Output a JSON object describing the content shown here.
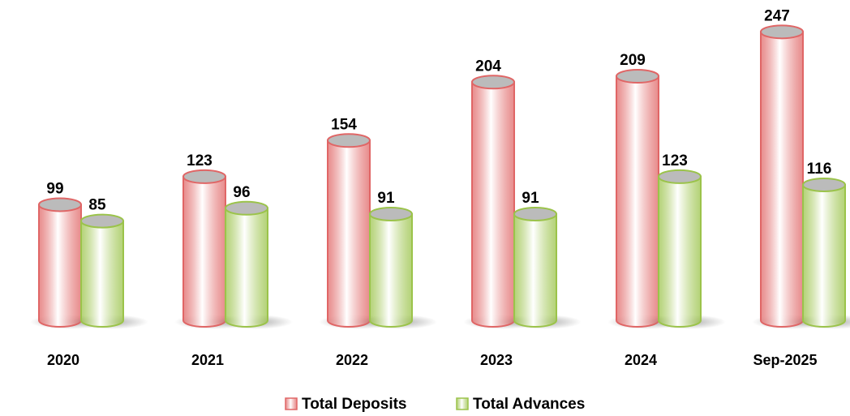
{
  "chart_data": {
    "type": "bar",
    "categories": [
      "2020",
      "2021",
      "2022",
      "2023",
      "2024",
      "Sep-2025"
    ],
    "series": [
      {
        "name": "Total Deposits",
        "color": "#e06666",
        "values": [
          99,
          123,
          154,
          204,
          209,
          247
        ]
      },
      {
        "name": "Total Advances",
        "color": "#9bc34a",
        "values": [
          85,
          96,
          91,
          91,
          123,
          116
        ]
      }
    ],
    "legend": "bottom"
  }
}
